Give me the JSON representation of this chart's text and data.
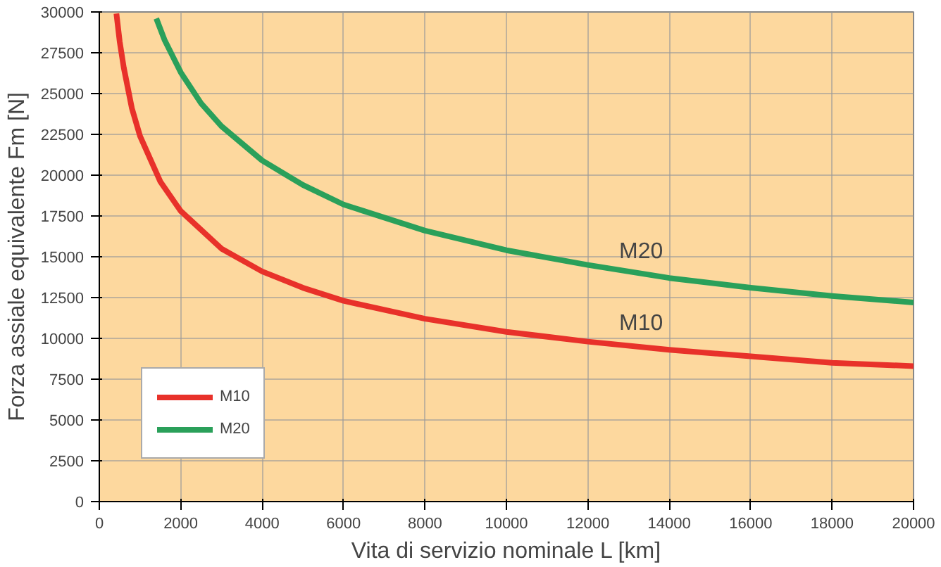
{
  "chart_data": {
    "type": "line",
    "xlabel": "Vita di servizio nominale L [km]",
    "ylabel": "Forza assiale equivalente Fm [N]",
    "xlim": [
      0,
      20000
    ],
    "ylim": [
      0,
      30000
    ],
    "xticks": [
      0,
      2000,
      4000,
      6000,
      8000,
      10000,
      12000,
      14000,
      16000,
      18000,
      20000
    ],
    "yticks": [
      0,
      2500,
      5000,
      7500,
      10000,
      12500,
      15000,
      17500,
      20000,
      22500,
      25000,
      27500,
      30000
    ],
    "grid": true,
    "legend": "bottom left",
    "marker": "none",
    "line_style": "solid",
    "series": [
      {
        "name": "M10",
        "color": "#e8312a",
        "x": [
          420,
          500,
          600,
          800,
          1000,
          1500,
          2000,
          3000,
          4000,
          5000,
          6000,
          8000,
          10000,
          12000,
          14000,
          16000,
          18000,
          20000
        ],
        "values": [
          29900,
          28200,
          26600,
          24100,
          22400,
          19600,
          17800,
          15500,
          14100,
          13100,
          12300,
          11200,
          10400,
          9800,
          9300,
          8900,
          8500,
          8300
        ]
      },
      {
        "name": "M20",
        "color": "#2aa05a",
        "x": [
          1400,
          1600,
          2000,
          2500,
          3000,
          4000,
          5000,
          6000,
          8000,
          10000,
          12000,
          14000,
          16000,
          18000,
          20000
        ],
        "values": [
          29600,
          28300,
          26300,
          24400,
          23000,
          20900,
          19400,
          18200,
          16600,
          15400,
          14500,
          13700,
          13100,
          12600,
          12200
        ]
      }
    ],
    "annotations": [
      {
        "text": "M20",
        "x": 14000,
        "y": 13700
      },
      {
        "text": "M10",
        "x": 14000,
        "y": 9300
      }
    ]
  }
}
